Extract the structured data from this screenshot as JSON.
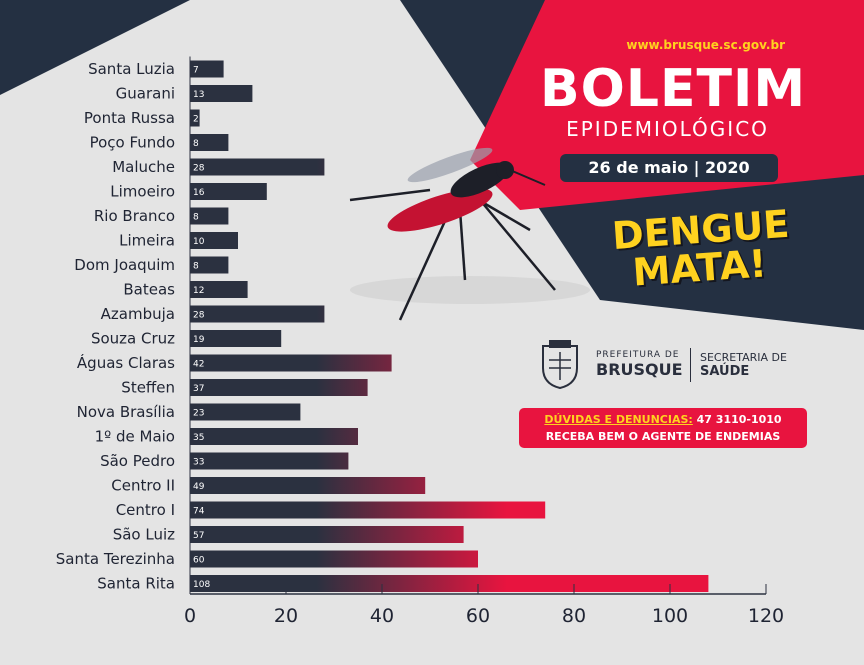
{
  "header": {
    "site_url": "www.brusque.sc.gov.br",
    "title": "BOLETIM",
    "subtitle": "EPIDEMIOLÓGICO",
    "date": "26 de maio | 2020",
    "slogan_line1": "DENGUE",
    "slogan_line2": "MATA!"
  },
  "branding": {
    "prefeitura_label": "PREFEITURA DE",
    "prefeitura_name": "BRUSQUE",
    "secretaria_line1": "SECRETARIA DE",
    "secretaria_line2": "SAÚDE"
  },
  "contact": {
    "prefix": "DÚVIDAS E DENUNCIAS:",
    "phone": "47 3110-1010",
    "message": "RECEBA BEM O AGENTE DE ENDEMIAS"
  },
  "colors": {
    "background": "#e4e4e4",
    "dark_navy": "#243042",
    "accent_red": "#e8143f",
    "bar_dark": "#2b3140",
    "bar_red": "#e8143f",
    "yellow": "#ffd21f"
  },
  "chart_data": {
    "type": "bar",
    "orientation": "horizontal",
    "categories": [
      "Santa Luzia",
      "Guarani",
      "Ponta Russa",
      "Poço Fundo",
      "Maluche",
      "Limoeiro",
      "Rio Branco",
      "Limeira",
      "Dom Joaquim",
      "Bateas",
      "Azambuja",
      "Souza Cruz",
      "Águas Claras",
      "Steffen",
      "Nova Brasília",
      "1º de Maio",
      "São Pedro",
      "Centro II",
      "Centro I",
      "São Luiz",
      "Santa Terezinha",
      "Santa Rita"
    ],
    "values": [
      7,
      13,
      2,
      8,
      28,
      16,
      8,
      10,
      8,
      12,
      28,
      19,
      42,
      37,
      23,
      35,
      33,
      49,
      74,
      57,
      60,
      108
    ],
    "xlim": [
      0,
      120
    ],
    "xticks": [
      "0",
      "20",
      "40",
      "60",
      "80",
      "100",
      "120"
    ],
    "grid": false,
    "legend": "none"
  }
}
